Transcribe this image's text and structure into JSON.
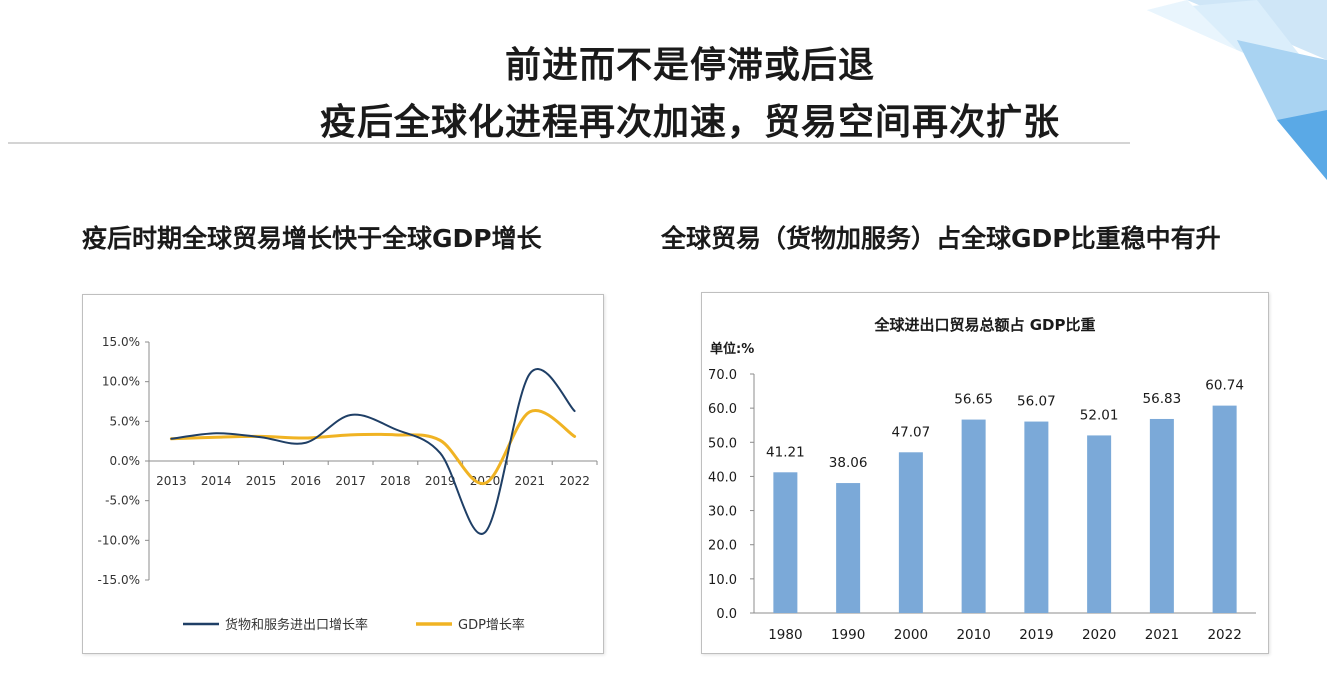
{
  "headline": {
    "line1": "前进而不是停滞或后退",
    "line2": "疫后全球化进程再次加速，贸易空间再次扩张"
  },
  "left_section_title": "疫后时期全球贸易增长快于全球GDP增长",
  "right_section_title": "全球贸易（货物加服务）占全球GDP比重稳中有升",
  "colors": {
    "trade_line": "#1f3f66",
    "gdp_line": "#f0b323",
    "bar": "#7ba9d8"
  },
  "chart_data": [
    {
      "type": "line",
      "title": "",
      "x": [
        "2013",
        "2014",
        "2015",
        "2016",
        "2017",
        "2018",
        "2019",
        "2020",
        "2021",
        "2022"
      ],
      "ylim": [
        -15,
        15
      ],
      "yticks": [
        "15.0%",
        "10.0%",
        "5.0%",
        "0.0%",
        "-5.0%",
        "-10.0%",
        "-15.0%"
      ],
      "legend_position": "bottom",
      "grid": false,
      "series": [
        {
          "name": "货物和服务进出口增长率",
          "values": [
            2.8,
            3.5,
            3.0,
            2.3,
            5.8,
            4.0,
            1.0,
            -9.0,
            11.0,
            6.3
          ]
        },
        {
          "name": "GDP增长率",
          "values": [
            2.8,
            3.0,
            3.1,
            2.9,
            3.3,
            3.3,
            2.6,
            -2.8,
            6.2,
            3.1
          ]
        }
      ]
    },
    {
      "type": "bar",
      "title": "全球进出口贸易总额占 GDP比重",
      "unit_label": "单位:%",
      "categories": [
        "1980",
        "1990",
        "2000",
        "2010",
        "2019",
        "2020",
        "2021",
        "2022"
      ],
      "values": [
        41.21,
        38.06,
        47.07,
        56.65,
        56.07,
        52.01,
        56.83,
        60.74
      ],
      "value_labels": [
        "41.21",
        "38.06",
        "47.07",
        "56.65",
        "56.07",
        "52.01",
        "56.83",
        "60.74"
      ],
      "ylim": [
        0,
        70
      ],
      "yticks": [
        "0.0",
        "10.0",
        "20.0",
        "30.0",
        "40.0",
        "50.0",
        "60.0",
        "70.0"
      ],
      "grid": false
    }
  ]
}
